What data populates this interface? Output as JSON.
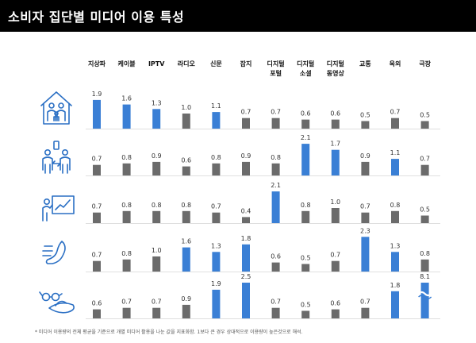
{
  "page": {
    "title": "소비자 집단별 미디어 이용 특성",
    "footnote": "* 미디어 이용량의 전체 평균을 기준으로 개별 미디어 활용을 나눈 값을 지표화함. 1보다 큰 경우 상대적으로 이용량이 높은것으로 해석."
  },
  "colors": {
    "header_bg": "#000000",
    "highlight": "#3a7fd5",
    "normal": "#6b6b6b",
    "icon_stroke": "#2a6fc4",
    "baseline": "#bfbfbf"
  },
  "chart_data": {
    "type": "bar",
    "categories": [
      [
        "지상파"
      ],
      [
        "케이블"
      ],
      [
        "IPTV"
      ],
      [
        "라디오"
      ],
      [
        "신문"
      ],
      [
        "잡지"
      ],
      [
        "디지털",
        "포털"
      ],
      [
        "디지털",
        "소셜"
      ],
      [
        "디지털",
        "동영상"
      ],
      [
        "교통"
      ],
      [
        "옥외"
      ],
      [
        "극장"
      ]
    ],
    "highlight_threshold": 1,
    "groups": [
      {
        "icon": "family-house-icon",
        "values": [
          1.9,
          1.6,
          1.3,
          1.0,
          1.1,
          0.7,
          0.7,
          0.6,
          0.6,
          0.5,
          0.7,
          0.5
        ]
      },
      {
        "icon": "people-smartphone-icon",
        "values": [
          0.7,
          0.8,
          0.9,
          0.6,
          0.8,
          0.9,
          0.8,
          2.1,
          1.7,
          0.9,
          1.1,
          0.7
        ]
      },
      {
        "icon": "presenter-board-icon",
        "values": [
          0.7,
          0.8,
          0.8,
          0.8,
          0.7,
          0.4,
          2.1,
          0.8,
          1.0,
          0.7,
          0.8,
          0.5
        ]
      },
      {
        "icon": "running-foot-icon",
        "values": [
          0.7,
          0.8,
          1.0,
          1.6,
          1.3,
          1.8,
          0.6,
          0.5,
          0.7,
          2.3,
          1.3,
          0.8
        ]
      },
      {
        "icon": "sunglasses-hat-icon",
        "values": [
          0.6,
          0.7,
          0.7,
          0.9,
          1.9,
          2.5,
          0.7,
          0.5,
          0.6,
          0.7,
          1.8,
          8.1
        ]
      }
    ],
    "capped_values": [
      8.1
    ]
  }
}
